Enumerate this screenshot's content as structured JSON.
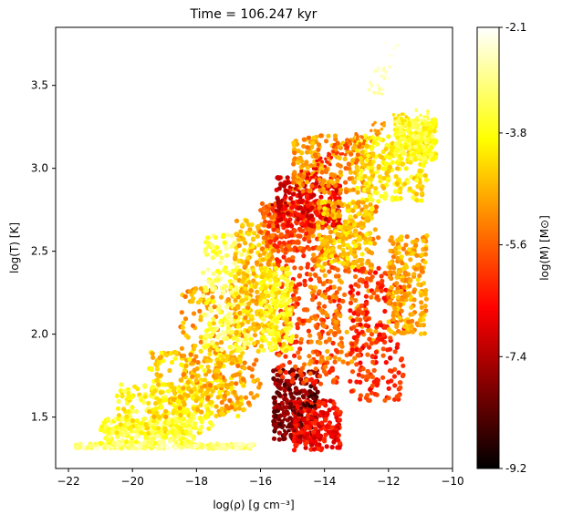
{
  "chart_data": {
    "type": "scatter",
    "title": "Time = 106.247 kyr",
    "xlabel": "log(ρ) [g cm⁻³]",
    "ylabel": "log(T) [K]",
    "xlim": [
      -22.4,
      -10.0
    ],
    "ylim": [
      1.19,
      3.85
    ],
    "x_ticks": [
      -22,
      -20,
      -18,
      -16,
      -14,
      -12,
      -10
    ],
    "y_ticks": [
      1.5,
      2.0,
      2.5,
      3.0,
      3.5
    ],
    "colorbar": {
      "label": "log(M) [M⊙]",
      "colormap": "hot",
      "range": [
        -9.2,
        -2.1
      ],
      "ticks": [
        -2.1,
        -3.8,
        -5.6,
        -7.4,
        -9.2
      ]
    },
    "regions": [
      {
        "x": [
          -21.8,
          -16.2
        ],
        "y": [
          1.31,
          1.34
        ],
        "c": -3.0
      },
      {
        "x": [
          -21.0,
          -18.0
        ],
        "y": [
          1.34,
          1.5
        ],
        "c": -3.4
      },
      {
        "x": [
          -20.5,
          -17.5
        ],
        "y": [
          1.4,
          1.7
        ],
        "c": -3.8
      },
      {
        "x": [
          -19.5,
          -16.5
        ],
        "y": [
          1.5,
          1.9
        ],
        "c": -4.4
      },
      {
        "x": [
          -18.5,
          -16.0
        ],
        "y": [
          1.55,
          2.3
        ],
        "c": -4.9
      },
      {
        "x": [
          -17.8,
          -16.3
        ],
        "y": [
          1.9,
          2.6
        ],
        "c": -3.3
      },
      {
        "x": [
          -16.8,
          -15.5
        ],
        "y": [
          2.0,
          2.7
        ],
        "c": -4.6
      },
      {
        "x": [
          -15.6,
          -14.2
        ],
        "y": [
          1.35,
          1.8
        ],
        "c": -7.9
      },
      {
        "x": [
          -15.0,
          -13.5
        ],
        "y": [
          1.3,
          1.6
        ],
        "c": -6.6
      },
      {
        "x": [
          -15.5,
          -13.5
        ],
        "y": [
          1.7,
          2.5
        ],
        "c": -5.9
      },
      {
        "x": [
          -14.5,
          -12.3
        ],
        "y": [
          1.8,
          2.8
        ],
        "c": -5.2
      },
      {
        "x": [
          -16.0,
          -14.0
        ],
        "y": [
          2.5,
          2.8
        ],
        "c": -5.8
      },
      {
        "x": [
          -15.5,
          -13.5
        ],
        "y": [
          2.65,
          2.95
        ],
        "c": -6.8
      },
      {
        "x": [
          -15.0,
          -12.5
        ],
        "y": [
          2.85,
          3.2
        ],
        "c": -5.0
      },
      {
        "x": [
          -13.0,
          -10.8
        ],
        "y": [
          2.8,
          3.2
        ],
        "c": -4.1
      },
      {
        "x": [
          -13.2,
          -11.5
        ],
        "y": [
          1.6,
          2.4
        ],
        "c": -6.2
      },
      {
        "x": [
          -12.0,
          -10.8
        ],
        "y": [
          2.0,
          2.6
        ],
        "c": -4.8
      },
      {
        "x": [
          -11.8,
          -10.5
        ],
        "y": [
          3.05,
          3.3
        ],
        "c": -3.6
      },
      {
        "x": [
          -14.2,
          -12.5
        ],
        "y": [
          2.4,
          2.8
        ],
        "c": -4.5
      },
      {
        "x": [
          -16.0,
          -15.0
        ],
        "y": [
          1.9,
          2.4
        ],
        "c": -3.9
      }
    ],
    "streaks": [
      {
        "x": -15.4,
        "y": 2.78,
        "c": -7.4
      },
      {
        "x": -15.0,
        "y": 2.88,
        "c": -7.2
      },
      {
        "x": -14.5,
        "y": 2.98,
        "c": -6.8
      },
      {
        "x": -14.0,
        "y": 3.05,
        "c": -6.4
      },
      {
        "x": -13.5,
        "y": 3.12,
        "c": -6.0
      },
      {
        "x": -13.0,
        "y": 3.18,
        "c": -5.5
      },
      {
        "x": -12.3,
        "y": 3.24,
        "c": -5.0
      },
      {
        "x": -11.6,
        "y": 3.3,
        "c": -4.2
      },
      {
        "x": -11.0,
        "y": 3.32,
        "c": -3.4
      },
      {
        "x": -12.4,
        "y": 3.48,
        "c": -2.7
      },
      {
        "x": -12.2,
        "y": 3.58,
        "c": -2.5
      },
      {
        "x": -11.9,
        "y": 3.72,
        "c": -2.2
      },
      {
        "x": -14.8,
        "y": 1.55,
        "c": -8.2
      },
      {
        "x": -14.5,
        "y": 1.6,
        "c": -8.6
      },
      {
        "x": -15.2,
        "y": 1.45,
        "c": -8.0
      }
    ]
  }
}
